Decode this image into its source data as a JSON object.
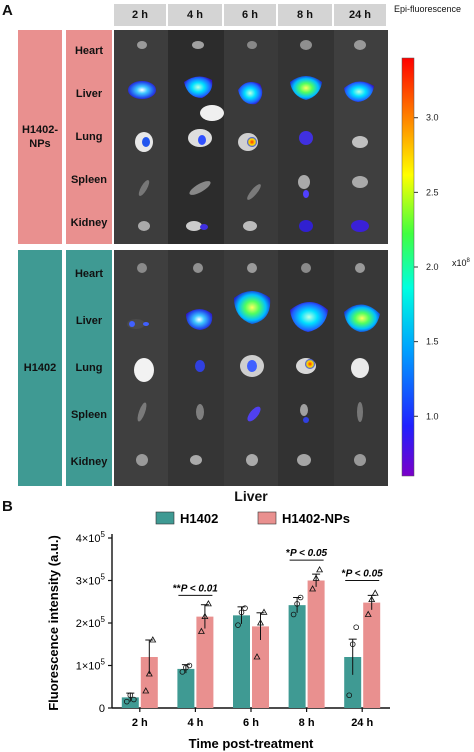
{
  "panel_a": {
    "letter": "A",
    "time_headers": [
      "2 h",
      "4 h",
      "6 h",
      "8 h",
      "24 h"
    ],
    "groups": [
      {
        "label": "H1402-\nNPs",
        "color": "#e9908f"
      },
      {
        "label": "H1402",
        "color": "#3f9a93"
      }
    ],
    "organs": [
      "Heart",
      "Liver",
      "Lung",
      "Spleen",
      "Kidney"
    ],
    "colorbar": {
      "title": "Epi-fluorescence",
      "ticks": [
        "3.0",
        "2.5",
        "2.0",
        "1.5",
        "1.0"
      ],
      "tick_values": [
        3.0,
        2.5,
        2.0,
        1.5,
        1.0
      ],
      "range": [
        0.6,
        3.4
      ],
      "multiplier": "x10",
      "multiplier_exp": "8"
    }
  },
  "panel_b": {
    "letter": "B",
    "chart_data": {
      "type": "bar",
      "title": "Liver",
      "xlabel": "Time post-treatment",
      "ylabel": "Fluorescence intensity (a.u.)",
      "categories": [
        "2 h",
        "4 h",
        "6 h",
        "8 h",
        "24 h"
      ],
      "ylim": [
        0,
        400000
      ],
      "yticks": [
        {
          "value": 0,
          "base": "0",
          "exp": ""
        },
        {
          "value": 100000,
          "base": "1×10",
          "exp": "5"
        },
        {
          "value": 200000,
          "base": "2×10",
          "exp": "5"
        },
        {
          "value": 300000,
          "base": "3×10",
          "exp": "5"
        },
        {
          "value": 400000,
          "base": "4×10",
          "exp": "5"
        }
      ],
      "series": [
        {
          "name": "H1402",
          "color": "#3f9a93",
          "values": [
            25000,
            92000,
            218000,
            242000,
            120000
          ],
          "errors": [
            10000,
            10000,
            20000,
            18000,
            42000
          ],
          "points": [
            [
              15000,
              30000,
              20000
            ],
            [
              85000,
              95000,
              100000
            ],
            [
              195000,
              225000,
              235000
            ],
            [
              220000,
              245000,
              260000
            ],
            [
              30000,
              150000,
              190000
            ]
          ]
        },
        {
          "name": "H1402-NPs",
          "color": "#e9908f",
          "values": [
            120000,
            215000,
            192000,
            300000,
            248000
          ],
          "errors": [
            40000,
            28000,
            32000,
            15000,
            17000
          ],
          "points": [
            [
              40000,
              80000,
              160000
            ],
            [
              180000,
              215000,
              245000
            ],
            [
              120000,
              200000,
              225000
            ],
            [
              280000,
              305000,
              325000
            ],
            [
              220000,
              255000,
              270000
            ]
          ]
        }
      ],
      "legend": "top",
      "annotations": [
        {
          "prefix": "**",
          "text": "P < 0.01",
          "category": 1,
          "y": 265000
        },
        {
          "prefix": "*",
          "text": "P < 0.05",
          "category": 3,
          "y": 348000
        },
        {
          "prefix": "*",
          "text": "P < 0.05",
          "category": 4,
          "y": 300000
        }
      ]
    }
  }
}
